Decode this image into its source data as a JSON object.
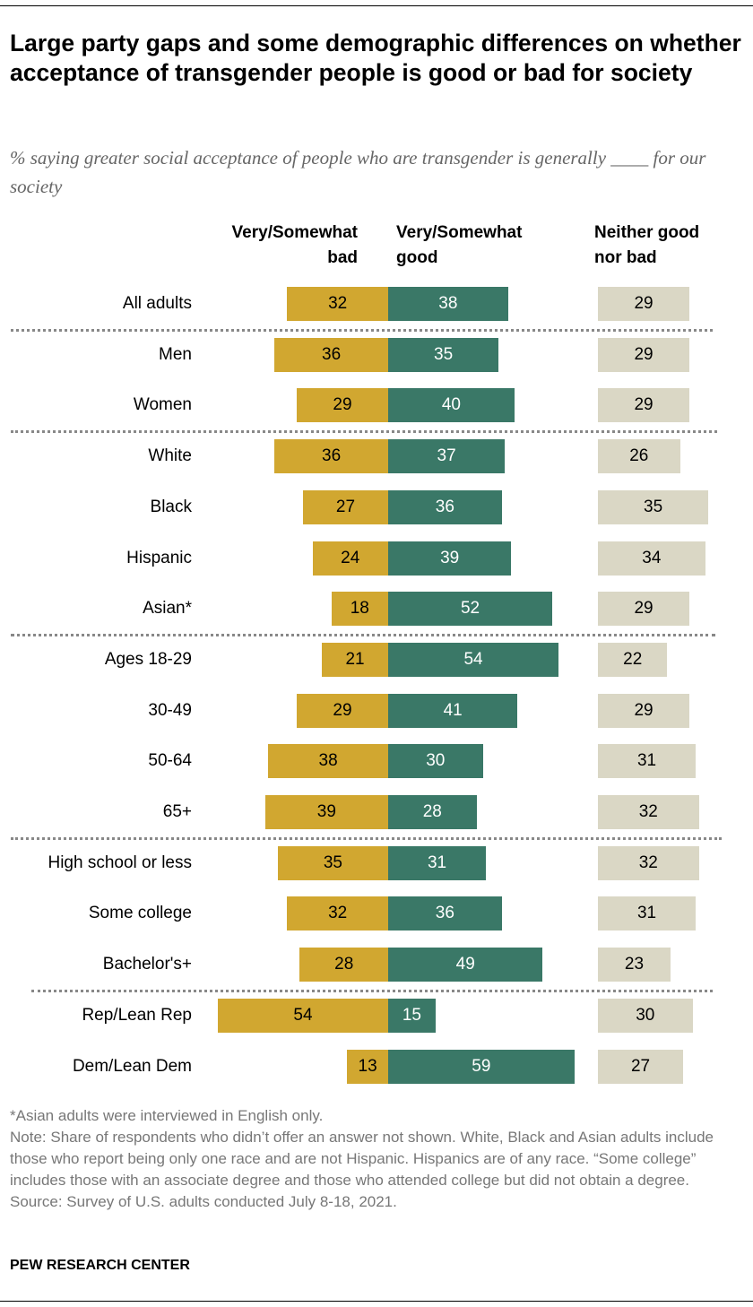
{
  "title": "Large party gaps and some demographic differences on whether acceptance of transgender people is good or bad for society",
  "subtitle": "% saying greater social acceptance of people who are transgender is generally ____ for our society",
  "chart_data": {
    "type": "bar",
    "subtype": "diverging-stacked-bar",
    "colors": {
      "bad": "#D1A730",
      "good": "#3A7867",
      "neither": "#DAD7C5"
    },
    "columns": {
      "bad": "Very/Somewhat bad",
      "good": "Very/Somewhat good",
      "neither": "Neither good nor bad"
    },
    "column_lines": {
      "bad": [
        "Very/Somewhat",
        "bad"
      ],
      "good": [
        "Very/Somewhat",
        "good"
      ],
      "neither": [
        "Neither good",
        "nor bad"
      ]
    },
    "categories": [
      "All adults",
      "Men",
      "Women",
      "White",
      "Black",
      "Hispanic",
      "Asian*",
      "Ages 18-29",
      "30-49",
      "50-64",
      "65+",
      "High school or less",
      "Some college",
      "Bachelor's+",
      "Rep/Lean Rep",
      "Dem/Lean Dem"
    ],
    "groups_end_after": [
      0,
      2,
      6,
      10,
      13
    ],
    "series": [
      {
        "name": "Very/Somewhat bad",
        "values": [
          32,
          36,
          29,
          36,
          27,
          24,
          18,
          21,
          29,
          38,
          39,
          35,
          32,
          28,
          54,
          13
        ]
      },
      {
        "name": "Very/Somewhat good",
        "values": [
          38,
          35,
          40,
          37,
          36,
          39,
          52,
          54,
          41,
          30,
          28,
          31,
          36,
          49,
          15,
          59
        ]
      },
      {
        "name": "Neither good nor bad",
        "values": [
          29,
          29,
          29,
          26,
          35,
          34,
          29,
          22,
          29,
          31,
          32,
          32,
          31,
          23,
          30,
          27
        ]
      }
    ]
  },
  "notes": [
    "*Asian adults were interviewed in English only.",
    "Note: Share of respondents who didn’t offer an answer not shown. White, Black and Asian adults include those who report being only one race and are not Hispanic. Hispanics are of any race. “Some college” includes those with an associate degree and those who attended college but did not obtain a degree.",
    "Source: Survey of U.S. adults conducted July 8-18, 2021."
  ],
  "brand": "PEW RESEARCH CENTER"
}
